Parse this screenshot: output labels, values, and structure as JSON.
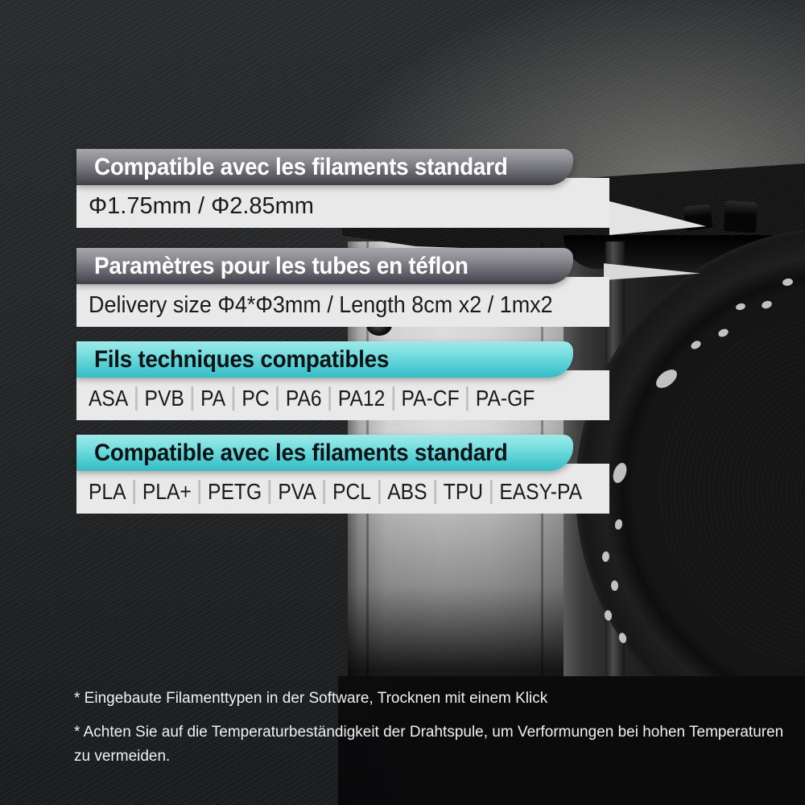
{
  "colors": {
    "teal_top": "#9fe9e9",
    "teal_bottom": "#35bcc4",
    "gray_top": "#a6a6ac",
    "gray_bottom": "#3f3f47",
    "strip_bg": "#e9e9e9",
    "background": "#232425"
  },
  "sections": [
    {
      "style": "gray",
      "title": "Compatible avec les filaments standard",
      "value": "Φ1.75mm / Φ2.85mm"
    },
    {
      "style": "gray",
      "title": "Paramètres pour les tubes en téflon",
      "value": "Delivery size Φ4*Φ3mm / Length 8cm x2 / 1mx2"
    },
    {
      "style": "teal",
      "title": "Fils techniques compatibles",
      "items": [
        "ASA",
        "PVB",
        "PA",
        "PC",
        "PA6",
        "PA12",
        "PA-CF",
        "PA-GF"
      ]
    },
    {
      "style": "teal",
      "title": "Compatible avec les filaments standard",
      "items": [
        "PLA",
        "PLA+",
        "PETG",
        "PVA",
        "PCL",
        "ABS",
        "TPU",
        "EASY-PA"
      ]
    }
  ],
  "footnotes": [
    "* Eingebaute Filamenttypen in der Software, Trocknen mit einem Klick",
    "* Achten Sie auf die Temperaturbeständigkeit der Drahtspule, um Verformungen bei hohen Temperaturen zu vermeiden."
  ]
}
